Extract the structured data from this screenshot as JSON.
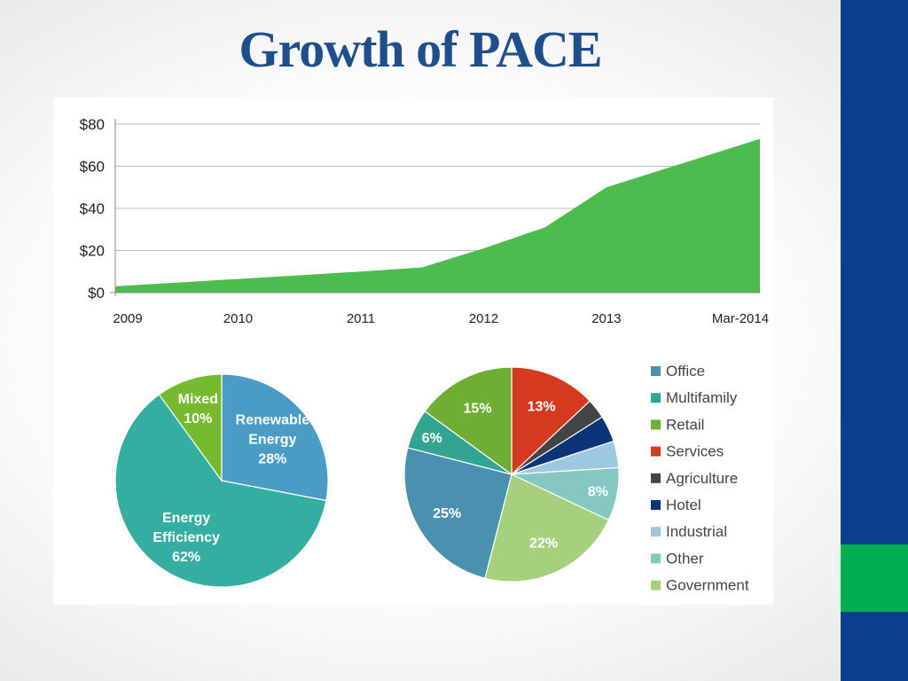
{
  "slide": {
    "title": "Growth of PACE",
    "accent_colors": {
      "bar": "#0b3f8c",
      "accent": "#00b050",
      "title": "#1f4e8c"
    }
  },
  "chart_data": [
    {
      "type": "area",
      "title": "",
      "xlabel": "",
      "ylabel": "",
      "x": [
        "2009",
        "2010",
        "2011",
        "2011.5",
        "2012",
        "2012.5",
        "2013",
        "Mar-2014"
      ],
      "x_positions": [
        2009,
        2010,
        2011,
        2011.5,
        2012,
        2012.5,
        2013,
        2014.25
      ],
      "values": [
        3,
        6.5,
        10,
        12,
        21,
        31,
        50,
        73
      ],
      "x_ticks": [
        {
          "label": "2009",
          "pos": 2009
        },
        {
          "label": "2010",
          "pos": 2010
        },
        {
          "label": "2011",
          "pos": 2011
        },
        {
          "label": "2012",
          "pos": 2012
        },
        {
          "label": "2013",
          "pos": 2013
        },
        {
          "label": "Mar-2014",
          "pos": 2014.25
        }
      ],
      "y_ticks": [
        "$0",
        "$20",
        "$40",
        "$60",
        "$80"
      ],
      "ylim": [
        0,
        80
      ],
      "xlim": [
        2009,
        2014.25
      ],
      "grid": true,
      "color": "#4cbc4f"
    },
    {
      "type": "pie",
      "slices": [
        {
          "name": "Renewable Energy",
          "label_lines": [
            "Renewable",
            "Energy",
            "28%"
          ],
          "value": 28,
          "color": "#4a9cc4"
        },
        {
          "name": "Energy Efficiency",
          "label_lines": [
            "Energy",
            "Efficiency",
            "62%"
          ],
          "value": 62,
          "color": "#33aea0"
        },
        {
          "name": "Mixed",
          "label_lines": [
            "Mixed",
            "10%"
          ],
          "value": 10,
          "color": "#75b92e"
        }
      ]
    },
    {
      "type": "pie",
      "slices": [
        {
          "name": "Services",
          "value": 13,
          "label": "13%",
          "color": "#d33a20"
        },
        {
          "name": "Agriculture",
          "value": 3,
          "label": "3%",
          "color": "#444444"
        },
        {
          "name": "Hotel",
          "value": 4,
          "label": "4%",
          "color": "#0b3578"
        },
        {
          "name": "Industrial",
          "value": 4,
          "label": "4%",
          "color": "#9cc9e0"
        },
        {
          "name": "Other",
          "value": 8,
          "label": "8%",
          "color": "#85c8c2"
        },
        {
          "name": "Government",
          "value": 22,
          "label": "22%",
          "color": "#a6d07e"
        },
        {
          "name": "Office",
          "value": 25,
          "label": "25%",
          "color": "#4a90b0"
        },
        {
          "name": "Multifamily",
          "value": 6,
          "label": "6%",
          "color": "#33a394"
        },
        {
          "name": "Retail",
          "value": 15,
          "label": "15%",
          "color": "#6fae35"
        }
      ],
      "legend": {
        "placement": "right",
        "entries": [
          {
            "name": "Office",
            "color": "#4a90b0"
          },
          {
            "name": "Multifamily",
            "color": "#33a394"
          },
          {
            "name": "Retail",
            "color": "#6fae35"
          },
          {
            "name": "Services",
            "color": "#d33a20"
          },
          {
            "name": "Agriculture",
            "color": "#444444"
          },
          {
            "name": "Hotel",
            "color": "#0b3578"
          },
          {
            "name": "Industrial",
            "color": "#9cc9e0"
          },
          {
            "name": "Other",
            "color": "#85c8c2"
          },
          {
            "name": "Government",
            "color": "#a6d07e"
          }
        ]
      }
    }
  ]
}
